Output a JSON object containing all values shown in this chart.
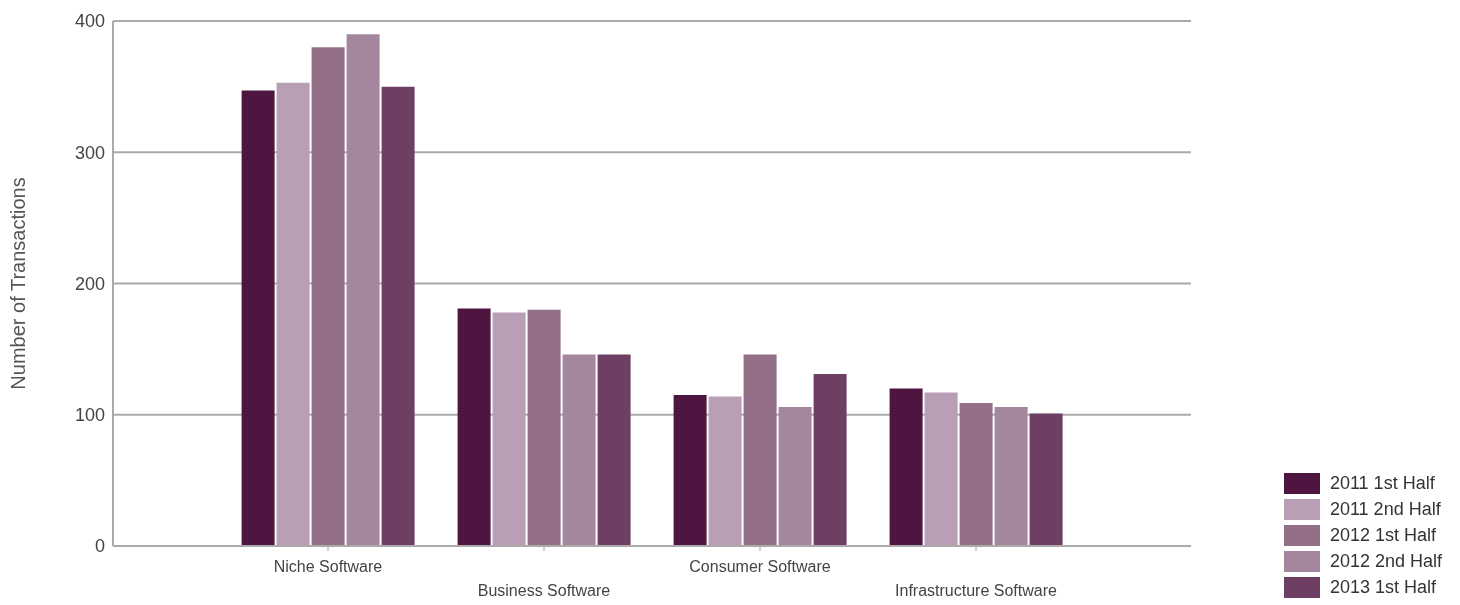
{
  "chart_data": {
    "type": "bar",
    "ylabel": "Number of Transactions",
    "categories": [
      "Niche Software",
      "Business Software",
      "Consumer Software",
      "Infrastructure Software"
    ],
    "series": [
      {
        "name": "2011 1st Half",
        "color": "#4e1540",
        "values": [
          347,
          181,
          115,
          120
        ]
      },
      {
        "name": "2011 2nd Half",
        "color": "#b89fb5",
        "values": [
          353,
          178,
          114,
          117
        ]
      },
      {
        "name": "2012 1st Half",
        "color": "#937088",
        "values": [
          380,
          180,
          146,
          109
        ]
      },
      {
        "name": "2012 2nd Half",
        "color": "#a4879e",
        "values": [
          390,
          146,
          106,
          106
        ]
      },
      {
        "name": "2013 1st Half",
        "color": "#6e3f62",
        "values": [
          350,
          146,
          131,
          101
        ]
      }
    ],
    "ylim": [
      0,
      400
    ],
    "yticks": [
      0,
      100,
      200,
      300,
      400
    ],
    "grid": "y",
    "legend": "bottom right"
  }
}
